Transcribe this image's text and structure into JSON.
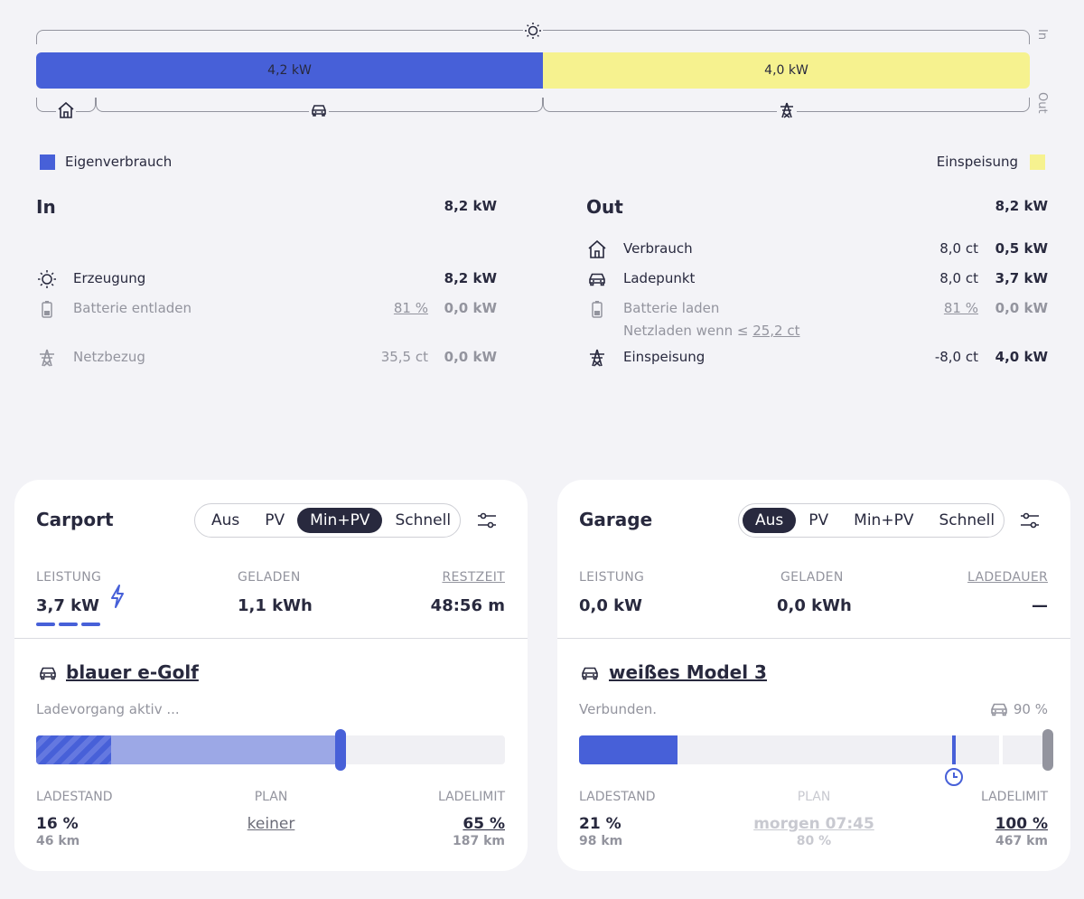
{
  "flow": {
    "label_in": "In",
    "label_out": "Out",
    "self_consumption_value": "4,2 kW",
    "feed_in_value": "4,0 kW",
    "color_self": "#4760d8",
    "color_feed": "#f6f28f"
  },
  "legend": {
    "self_consumption": "Eigenverbrauch",
    "feed_in": "Einspeisung"
  },
  "in": {
    "title": "In",
    "total": "8,2 kW",
    "rows": [
      {
        "label": "Erzeugung",
        "detail": "",
        "value": "8,2 kW",
        "icon": "sun-icon"
      },
      {
        "label": "Batterie entladen",
        "detail": "81 %",
        "value": "0,0 kW",
        "icon": "battery-icon"
      },
      {
        "label": "Netzbezug",
        "detail": "35,5 ct",
        "value": "0,0 kW",
        "icon": "grid-tower-icon"
      }
    ]
  },
  "out": {
    "title": "Out",
    "total": "8,2 kW",
    "rows": [
      {
        "label": "Verbrauch",
        "detail": "8,0 ct",
        "value": "0,5 kW",
        "icon": "house-icon"
      },
      {
        "label": "Ladepunkt",
        "detail": "8,0 ct",
        "value": "3,7 kW",
        "icon": "car-icon"
      },
      {
        "label": "Batterie laden",
        "detail": "81 %",
        "value": "0,0 kW",
        "icon": "battery-icon"
      },
      {
        "label": "Einspeisung",
        "detail": "-8,0 ct",
        "value": "4,0 kW",
        "icon": "grid-tower-icon"
      }
    ],
    "grid_charge_prefix": "Netzladen wenn ≤ ",
    "grid_charge_value": "25,2 ct"
  },
  "loadpoints": [
    {
      "title": "Carport",
      "modes": [
        "Aus",
        "PV",
        "Min+PV",
        "Schnell"
      ],
      "active_mode": "Min+PV",
      "power_label": "LEISTUNG",
      "power_value": "3,7 kW",
      "charged_label": "GELADEN",
      "charged_value": "1,1 kWh",
      "time_label": "RESTZEIT",
      "time_value": "48:56 m",
      "vehicle": "blauer e-Golf",
      "status": "Ladevorgang aktiv ...",
      "soc_label": "LADESTAND",
      "soc_value": "16 %",
      "soc_range": "46 km",
      "plan_label": "PLAN",
      "plan_value": "keiner",
      "limit_label": "LADELIMIT",
      "limit_value": "65 %",
      "limit_range": "187 km",
      "soc_fraction": 0.16,
      "charge_fraction": 0.65
    },
    {
      "title": "Garage",
      "modes": [
        "Aus",
        "PV",
        "Min+PV",
        "Schnell"
      ],
      "active_mode": "Aus",
      "power_label": "LEISTUNG",
      "power_value": "0,0 kW",
      "charged_label": "GELADEN",
      "charged_value": "0,0 kWh",
      "time_label": "LADEDAUER",
      "time_value": "—",
      "vehicle": "weißes Model 3",
      "status": "Verbunden.",
      "vehicle_limit": "90 %",
      "soc_label": "LADESTAND",
      "soc_value": "21 %",
      "soc_range": "98 km",
      "plan_label": "PLAN",
      "plan_value": "morgen 07:45",
      "plan_sub": "80 %",
      "limit_label": "LADELIMIT",
      "limit_value": "100 %",
      "limit_range": "467 km",
      "soc_fraction": 0.21,
      "plan_fraction": 0.8,
      "vehicle_limit_fraction": 0.9
    }
  ]
}
